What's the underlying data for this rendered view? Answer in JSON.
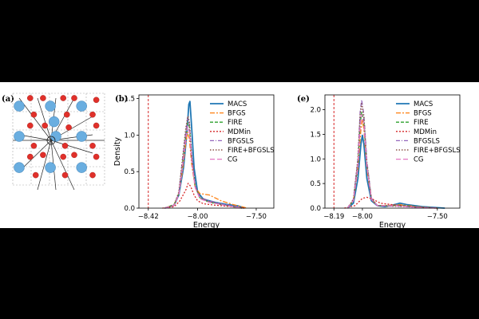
{
  "panel_a": {
    "label": "(a)",
    "atom_colors": {
      "large": "#6aaee0",
      "small": "#e0302a"
    }
  },
  "chart_data": [
    {
      "type": "line",
      "panel_label": "(b)",
      "xlabel": "Energy",
      "ylabel": "Density",
      "xlim": [
        -8.5,
        -7.35
      ],
      "ylim": [
        0,
        1.55
      ],
      "xticks": [
        -8.42,
        -8.0,
        -7.5
      ],
      "xtick_labels": [
        "−8.42",
        "−8.00",
        "−7.50"
      ],
      "yticks": [
        0.0,
        0.5,
        1.0,
        1.5
      ],
      "ytick_labels": [
        "0.0",
        "0.5",
        "1.0",
        "1.5"
      ],
      "reference_line": {
        "x": -8.42,
        "color": "#d62728"
      },
      "legend": "top-right",
      "grid": false,
      "series": [
        {
          "name": "MACS",
          "color": "#1f77b4",
          "dash": "",
          "width": 1.8,
          "points": [
            [
              -8.28,
              0
            ],
            [
              -8.2,
              0.04
            ],
            [
              -8.16,
              0.18
            ],
            [
              -8.12,
              0.55
            ],
            [
              -8.09,
              1.05
            ],
            [
              -8.075,
              1.42
            ],
            [
              -8.065,
              1.46
            ],
            [
              -8.05,
              1.1
            ],
            [
              -8.03,
              0.55
            ],
            [
              -8.0,
              0.22
            ],
            [
              -7.95,
              0.12
            ],
            [
              -7.9,
              0.1
            ],
            [
              -7.85,
              0.08
            ],
            [
              -7.75,
              0.05
            ],
            [
              -7.65,
              0.03
            ],
            [
              -7.6,
              0
            ]
          ]
        },
        {
          "name": "BFGS",
          "color": "#ff7f0e",
          "dash": "6,2,2,2",
          "width": 1.3,
          "points": [
            [
              -8.28,
              0
            ],
            [
              -8.2,
              0.05
            ],
            [
              -8.16,
              0.2
            ],
            [
              -8.13,
              0.5
            ],
            [
              -8.1,
              0.9
            ],
            [
              -8.085,
              1.04
            ],
            [
              -8.07,
              0.95
            ],
            [
              -8.05,
              0.6
            ],
            [
              -8.02,
              0.28
            ],
            [
              -7.98,
              0.2
            ],
            [
              -7.9,
              0.18
            ],
            [
              -7.8,
              0.1
            ],
            [
              -7.7,
              0.05
            ],
            [
              -7.62,
              0.02
            ],
            [
              -7.58,
              0
            ]
          ]
        },
        {
          "name": "FIRE",
          "color": "#2ca02c",
          "dash": "4,2",
          "width": 1.3,
          "points": [
            [
              -8.28,
              0
            ],
            [
              -8.2,
              0.05
            ],
            [
              -8.16,
              0.2
            ],
            [
              -8.13,
              0.6
            ],
            [
              -8.1,
              1.0
            ],
            [
              -8.085,
              1.17
            ],
            [
              -8.07,
              1.12
            ],
            [
              -8.05,
              0.7
            ],
            [
              -8.02,
              0.3
            ],
            [
              -7.98,
              0.14
            ],
            [
              -7.9,
              0.08
            ],
            [
              -7.8,
              0.05
            ],
            [
              -7.7,
              0.02
            ],
            [
              -7.62,
              0
            ]
          ]
        },
        {
          "name": "MDMin",
          "color": "#d62728",
          "dash": "2,2",
          "width": 1.3,
          "points": [
            [
              -8.3,
              0
            ],
            [
              -8.2,
              0.02
            ],
            [
              -8.15,
              0.1
            ],
            [
              -8.1,
              0.25
            ],
            [
              -8.08,
              0.34
            ],
            [
              -8.06,
              0.3
            ],
            [
              -8.03,
              0.18
            ],
            [
              -8.0,
              0.1
            ],
            [
              -7.95,
              0.06
            ],
            [
              -7.85,
              0.04
            ],
            [
              -7.7,
              0.02
            ],
            [
              -7.6,
              0
            ]
          ]
        },
        {
          "name": "BFGSLS",
          "color": "#9467bd",
          "dash": "5,2,1,2",
          "width": 1.3,
          "points": [
            [
              -8.28,
              0
            ],
            [
              -8.2,
              0.04
            ],
            [
              -8.16,
              0.2
            ],
            [
              -8.13,
              0.65
            ],
            [
              -8.1,
              1.05
            ],
            [
              -8.085,
              1.24
            ],
            [
              -8.07,
              1.15
            ],
            [
              -8.05,
              0.72
            ],
            [
              -8.02,
              0.3
            ],
            [
              -7.98,
              0.15
            ],
            [
              -7.9,
              0.1
            ],
            [
              -7.8,
              0.06
            ],
            [
              -7.7,
              0.03
            ],
            [
              -7.62,
              0
            ]
          ]
        },
        {
          "name": "FIRE+BFGSLS",
          "color": "#8c564b",
          "dash": "1.5,2",
          "width": 1.5,
          "points": [
            [
              -8.28,
              0
            ],
            [
              -8.2,
              0.04
            ],
            [
              -8.16,
              0.22
            ],
            [
              -8.13,
              0.65
            ],
            [
              -8.1,
              1.1
            ],
            [
              -8.082,
              1.26
            ],
            [
              -8.07,
              1.18
            ],
            [
              -8.05,
              0.72
            ],
            [
              -8.02,
              0.3
            ],
            [
              -7.98,
              0.14
            ],
            [
              -7.9,
              0.09
            ],
            [
              -7.8,
              0.05
            ],
            [
              -7.7,
              0.02
            ],
            [
              -7.62,
              0
            ]
          ]
        },
        {
          "name": "CG",
          "color": "#e377c2",
          "dash": "6,3",
          "width": 1.3,
          "points": [
            [
              -8.28,
              0
            ],
            [
              -8.2,
              0.04
            ],
            [
              -8.16,
              0.18
            ],
            [
              -8.13,
              0.55
            ],
            [
              -8.1,
              0.95
            ],
            [
              -8.085,
              1.12
            ],
            [
              -8.07,
              1.05
            ],
            [
              -8.05,
              0.65
            ],
            [
              -8.02,
              0.28
            ],
            [
              -7.98,
              0.13
            ],
            [
              -7.9,
              0.08
            ],
            [
              -7.8,
              0.05
            ],
            [
              -7.7,
              0.02
            ],
            [
              -7.62,
              0
            ]
          ]
        }
      ]
    },
    {
      "type": "line",
      "panel_label": "(e)",
      "xlabel": "Energy",
      "ylabel": "",
      "xlim": [
        -8.25,
        -7.35
      ],
      "ylim": [
        0,
        2.3
      ],
      "xticks": [
        -8.19,
        -8.0,
        -7.5
      ],
      "xtick_labels": [
        "−8.19",
        "−8.00",
        "−7.50"
      ],
      "yticks": [
        0.0,
        0.5,
        1.0,
        1.5,
        2.0
      ],
      "ytick_labels": [
        "0.0",
        "0.5",
        "1.0",
        "1.5",
        "2.0"
      ],
      "reference_line": {
        "x": -8.19,
        "color": "#d62728"
      },
      "legend": "top-right",
      "grid": false,
      "series": [
        {
          "name": "MACS",
          "color": "#1f77b4",
          "dash": "",
          "width": 1.8,
          "points": [
            [
              -8.1,
              0
            ],
            [
              -8.06,
              0.1
            ],
            [
              -8.03,
              0.6
            ],
            [
              -8.01,
              1.3
            ],
            [
              -8.0,
              1.48
            ],
            [
              -7.99,
              1.3
            ],
            [
              -7.97,
              0.6
            ],
            [
              -7.94,
              0.15
            ],
            [
              -7.9,
              0.05
            ],
            [
              -7.85,
              0.03
            ],
            [
              -7.8,
              0.06
            ],
            [
              -7.75,
              0.1
            ],
            [
              -7.7,
              0.07
            ],
            [
              -7.6,
              0.03
            ],
            [
              -7.5,
              0.01
            ],
            [
              -7.45,
              0
            ]
          ]
        },
        {
          "name": "BFGS",
          "color": "#ff7f0e",
          "dash": "6,2,2,2",
          "width": 1.3,
          "points": [
            [
              -8.1,
              0
            ],
            [
              -8.06,
              0.15
            ],
            [
              -8.03,
              0.8
            ],
            [
              -8.01,
              1.6
            ],
            [
              -8.0,
              1.8
            ],
            [
              -7.99,
              1.6
            ],
            [
              -7.97,
              0.8
            ],
            [
              -7.94,
              0.18
            ],
            [
              -7.9,
              0.05
            ],
            [
              -7.8,
              0.06
            ],
            [
              -7.75,
              0.07
            ],
            [
              -7.6,
              0.02
            ],
            [
              -7.5,
              0
            ]
          ]
        },
        {
          "name": "FIRE",
          "color": "#2ca02c",
          "dash": "4,2",
          "width": 1.3,
          "points": [
            [
              -8.1,
              0
            ],
            [
              -8.06,
              0.15
            ],
            [
              -8.03,
              0.9
            ],
            [
              -8.015,
              1.7
            ],
            [
              -8.005,
              1.95
            ],
            [
              -7.99,
              1.75
            ],
            [
              -7.97,
              0.9
            ],
            [
              -7.94,
              0.2
            ],
            [
              -7.9,
              0.05
            ],
            [
              -7.8,
              0.05
            ],
            [
              -7.75,
              0.06
            ],
            [
              -7.6,
              0.02
            ],
            [
              -7.5,
              0
            ]
          ]
        },
        {
          "name": "MDMin",
          "color": "#d62728",
          "dash": "2,2",
          "width": 1.3,
          "points": [
            [
              -8.12,
              0
            ],
            [
              -8.05,
              0.05
            ],
            [
              -8.02,
              0.14
            ],
            [
              -8.0,
              0.2
            ],
            [
              -7.97,
              0.22
            ],
            [
              -7.93,
              0.18
            ],
            [
              -7.88,
              0.1
            ],
            [
              -7.8,
              0.07
            ],
            [
              -7.7,
              0.04
            ],
            [
              -7.6,
              0.02
            ],
            [
              -7.5,
              0
            ]
          ]
        },
        {
          "name": "BFGSLS",
          "color": "#9467bd",
          "dash": "5,2,1,2",
          "width": 1.3,
          "points": [
            [
              -8.1,
              0
            ],
            [
              -8.06,
              0.18
            ],
            [
              -8.03,
              1.0
            ],
            [
              -8.015,
              1.95
            ],
            [
              -8.005,
              2.2
            ],
            [
              -7.99,
              1.9
            ],
            [
              -7.97,
              0.95
            ],
            [
              -7.94,
              0.2
            ],
            [
              -7.9,
              0.05
            ],
            [
              -7.8,
              0.04
            ],
            [
              -7.7,
              0.03
            ],
            [
              -7.6,
              0.01
            ],
            [
              -7.5,
              0
            ]
          ]
        },
        {
          "name": "FIRE+BFGSLS",
          "color": "#8c564b",
          "dash": "1.5,2",
          "width": 1.5,
          "points": [
            [
              -8.1,
              0
            ],
            [
              -8.06,
              0.18
            ],
            [
              -8.03,
              1.0
            ],
            [
              -8.015,
              1.9
            ],
            [
              -8.005,
              2.12
            ],
            [
              -7.99,
              1.85
            ],
            [
              -7.97,
              0.9
            ],
            [
              -7.94,
              0.2
            ],
            [
              -7.9,
              0.05
            ],
            [
              -7.8,
              0.04
            ],
            [
              -7.7,
              0.03
            ],
            [
              -7.6,
              0.01
            ],
            [
              -7.5,
              0
            ]
          ]
        },
        {
          "name": "CG",
          "color": "#e377c2",
          "dash": "6,3",
          "width": 1.3,
          "points": [
            [
              -8.1,
              0
            ],
            [
              -8.06,
              0.15
            ],
            [
              -8.03,
              0.85
            ],
            [
              -8.015,
              1.65
            ],
            [
              -8.005,
              1.9
            ],
            [
              -7.99,
              1.7
            ],
            [
              -7.97,
              0.85
            ],
            [
              -7.94,
              0.18
            ],
            [
              -7.9,
              0.05
            ],
            [
              -7.8,
              0.05
            ],
            [
              -7.7,
              0.03
            ],
            [
              -7.6,
              0.01
            ],
            [
              -7.5,
              0
            ]
          ]
        }
      ]
    }
  ]
}
